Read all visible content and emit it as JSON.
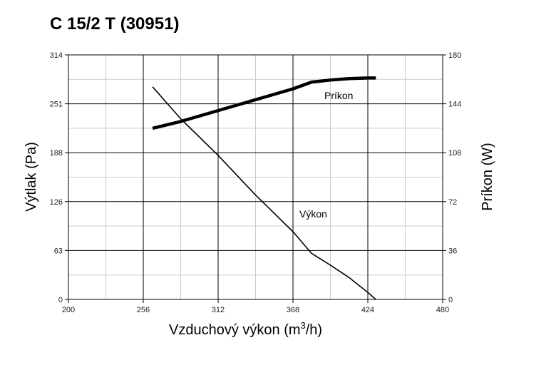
{
  "title": "C 15/2 T (30951)",
  "chart_data": {
    "type": "line",
    "xlabel": "Vzduchový výkon (m",
    "xlabel_sup": "3",
    "xlabel_suffix": "/h)",
    "ylabel_left": "Výtlak (Pa)",
    "ylabel_right": "Príkon (W)",
    "xlim": [
      200,
      480
    ],
    "ylim_left": [
      0,
      314
    ],
    "ylim_right": [
      0,
      180
    ],
    "x_ticks": [
      "200",
      "256",
      "312",
      "368",
      "424",
      "480"
    ],
    "y_left_ticks": [
      "0",
      "63",
      "126",
      "188",
      "251",
      "314"
    ],
    "y_right_ticks": [
      "0",
      "36",
      "72",
      "108",
      "144",
      "180"
    ],
    "grid": true,
    "series": [
      {
        "name": "Výkon",
        "axis": "left",
        "x": [
          263,
          284,
          312,
          340,
          368,
          382,
          396,
          410,
          424,
          430
        ],
        "y": [
          273,
          232,
          185,
          134,
          87,
          59,
          44,
          28,
          9,
          0
        ]
      },
      {
        "name": "Príkon",
        "axis": "right",
        "x": [
          263,
          284,
          312,
          340,
          368,
          382,
          396,
          410,
          424,
          430
        ],
        "y": [
          126,
          131,
          139,
          147,
          155,
          160,
          161.5,
          162.5,
          163,
          163
        ]
      }
    ]
  }
}
